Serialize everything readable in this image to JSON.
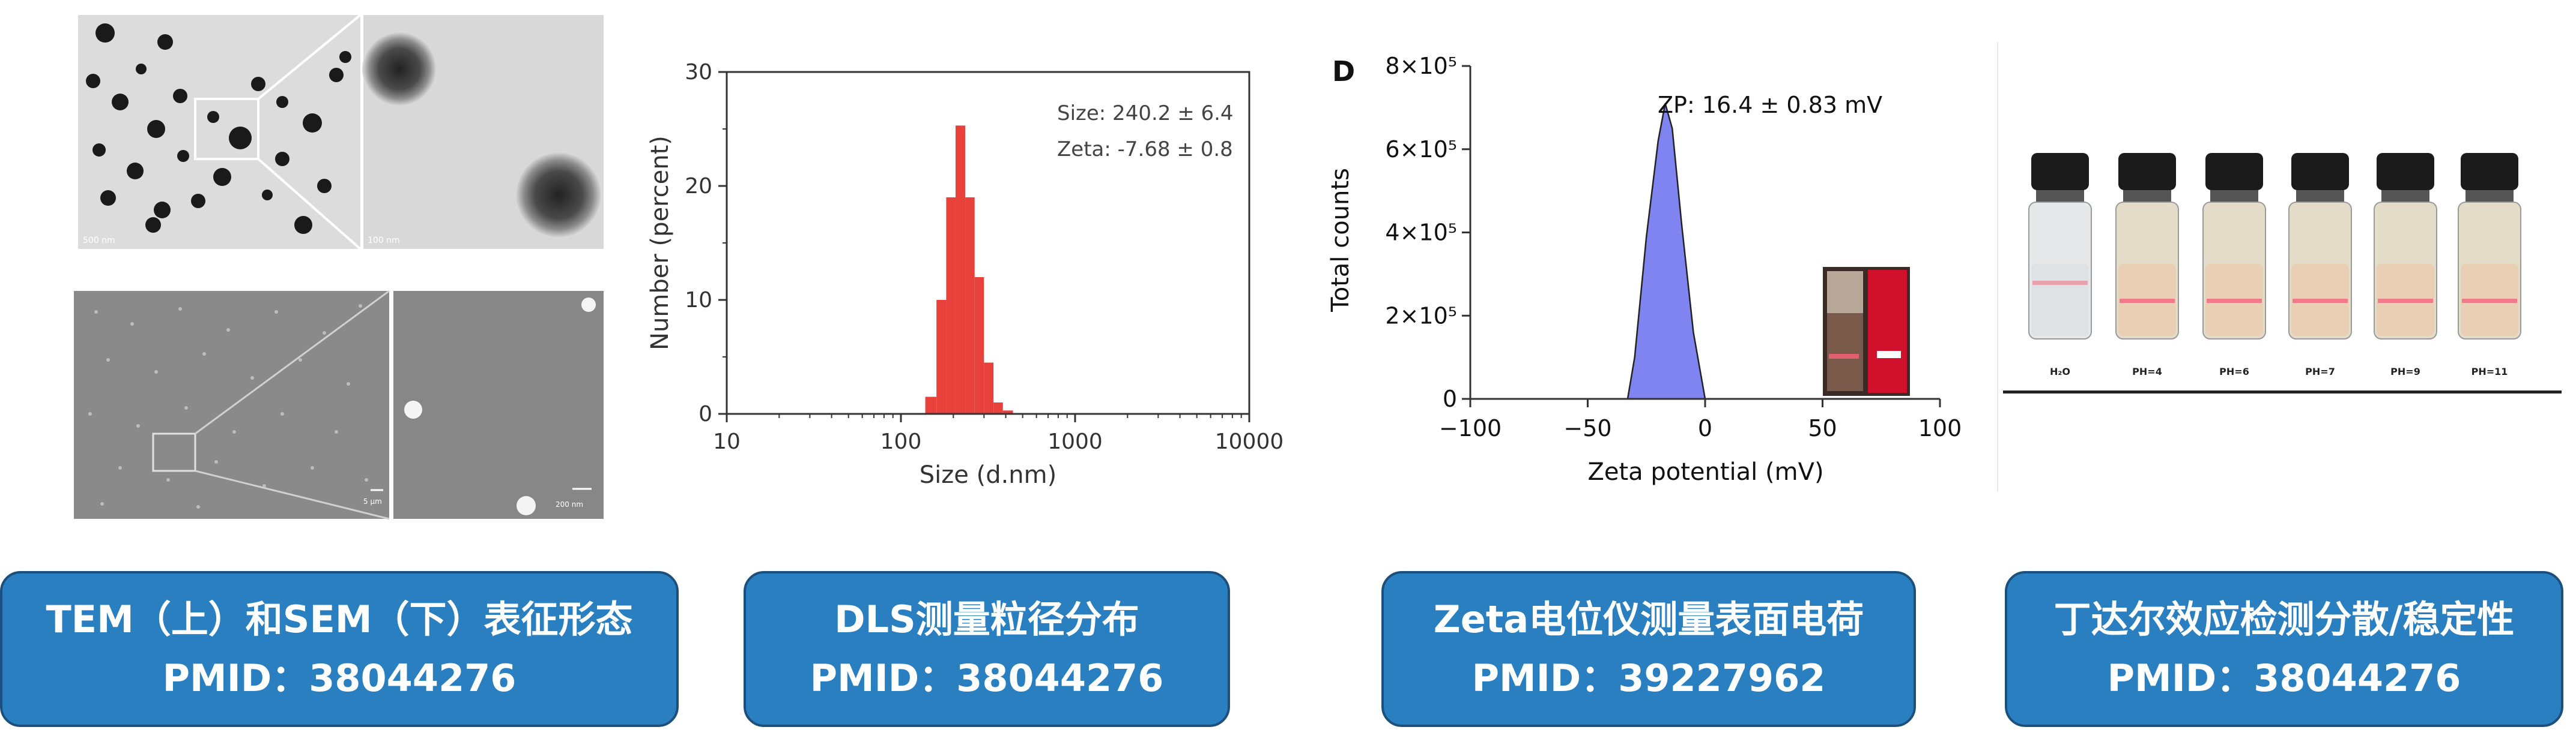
{
  "tem_panel": {
    "scale_left": "500 nm",
    "scale_right": "100 nm",
    "sem_scale_left": "5 μm",
    "sem_scale_right": "200 nm"
  },
  "dls_panel": {
    "annot_size": "Size: 240.2 ± 6.4",
    "annot_zeta": "Zeta: -7.68 ± 0.8"
  },
  "zeta_panel": {
    "panel_letter": "D",
    "annot": "ZP: 16.4  ± 0.83 mV"
  },
  "tyndall_panel": {
    "labels": [
      "H₂O",
      "PH=4",
      "PH=6",
      "PH=7",
      "PH=9",
      "PH=11"
    ]
  },
  "captions": [
    {
      "line1": "TEM（上）和SEM（下）表征形态",
      "line2": "PMID：38044276"
    },
    {
      "line1": "DLS测量粒径分布",
      "line2": "PMID：38044276"
    },
    {
      "line1": "Zeta电位仪测量表面电荷",
      "line2": "PMID：39227962"
    },
    {
      "line1": "丁达尔效应检测分散/稳定性",
      "line2": "PMID：38044276"
    }
  ],
  "chart_data": [
    {
      "type": "bar",
      "xlabel": "Size (d.nm)",
      "ylabel": "Number (percent)",
      "x_scale": "log",
      "xlim": [
        10,
        10000
      ],
      "ylim": [
        0,
        30
      ],
      "x_ticks": [
        "10",
        "100",
        "1000",
        "10000"
      ],
      "y_ticks": [
        "0",
        "10",
        "20",
        "30"
      ],
      "color": "#e8413c",
      "bins": [
        {
          "x0": 138,
          "x1": 160,
          "y": 1.5
        },
        {
          "x0": 160,
          "x1": 182,
          "y": 10
        },
        {
          "x0": 182,
          "x1": 206,
          "y": 19
        },
        {
          "x0": 206,
          "x1": 234,
          "y": 25.3
        },
        {
          "x0": 234,
          "x1": 265,
          "y": 19
        },
        {
          "x0": 265,
          "x1": 300,
          "y": 12
        },
        {
          "x0": 300,
          "x1": 340,
          "y": 4.5
        },
        {
          "x0": 340,
          "x1": 385,
          "y": 1
        },
        {
          "x0": 385,
          "x1": 440,
          "y": 0.3
        }
      ]
    },
    {
      "type": "area",
      "xlabel": "Zeta potential (mV)",
      "ylabel": "Total counts",
      "xlim": [
        -100,
        100
      ],
      "ylim": [
        0,
        800000
      ],
      "x_ticks": [
        "−100",
        "−50",
        "0",
        "50",
        "100"
      ],
      "y_ticks": [
        "0",
        "2×10⁵",
        "4×10⁵",
        "6×10⁵",
        "8×10⁵"
      ],
      "color": "#7f84f1",
      "x": [
        -33,
        -30,
        -25,
        -20,
        -17,
        -14,
        -10,
        -5,
        0
      ],
      "y": [
        0,
        100000,
        390000,
        620000,
        710000,
        650000,
        420000,
        160000,
        0
      ]
    }
  ]
}
